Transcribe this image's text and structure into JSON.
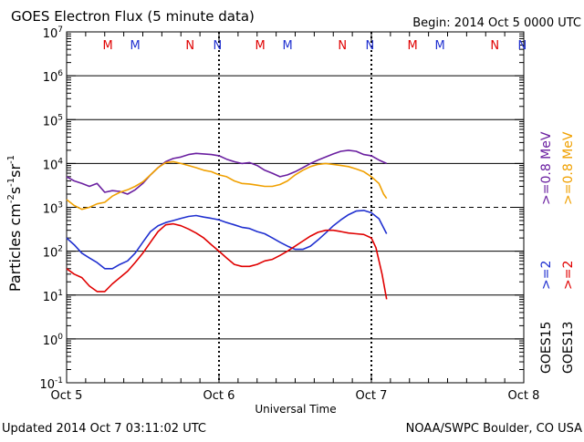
{
  "chart_data": {
    "type": "line",
    "title": "GOES Electron Flux (5 minute data)",
    "begin_label": "Begin: 2014 Oct 5 0000 UTC",
    "xlabel": "Universal Time",
    "ylabel_main": "Particles cm",
    "ylabel_sup1": "-2",
    "ylabel_mid1": "s",
    "ylabel_sup2": "-1",
    "ylabel_mid2": "sr",
    "ylabel_sup3": "-1",
    "footer_left": "Updated 2014 Oct  7 03:11:02 UTC",
    "footer_right": "NOAA/SWPC Boulder, CO USA",
    "x_range_days": [
      0,
      3
    ],
    "x_ticks": [
      {
        "day": 0,
        "label": "Oct 5"
      },
      {
        "day": 1,
        "label": "Oct 6"
      },
      {
        "day": 2,
        "label": "Oct 7"
      },
      {
        "day": 3,
        "label": "Oct 8"
      }
    ],
    "y_log_range": [
      -1,
      7
    ],
    "y_ticks": [
      {
        "exp": 7,
        "base": "10",
        "sup": "7"
      },
      {
        "exp": 6,
        "base": "10",
        "sup": "6"
      },
      {
        "exp": 5,
        "base": "10",
        "sup": "5"
      },
      {
        "exp": 4,
        "base": "10",
        "sup": "4"
      },
      {
        "exp": 3,
        "base": "10",
        "sup": "3"
      },
      {
        "exp": 2,
        "base": "10",
        "sup": "2"
      },
      {
        "exp": 1,
        "base": "10",
        "sup": "1"
      },
      {
        "exp": 0,
        "base": "10",
        "sup": "0"
      },
      {
        "exp": -1,
        "base": "10",
        "sup": "-1"
      }
    ],
    "threshold_lines": [
      {
        "exp": 3,
        "style": "dashed"
      }
    ],
    "markers": [
      {
        "day": 0.27,
        "letter": "M",
        "color": "#e00000"
      },
      {
        "day": 0.45,
        "letter": "M",
        "color": "#2030d0"
      },
      {
        "day": 0.81,
        "letter": "N",
        "color": "#e00000"
      },
      {
        "day": 0.99,
        "letter": "N",
        "color": "#2030d0"
      },
      {
        "day": 1.27,
        "letter": "M",
        "color": "#e00000"
      },
      {
        "day": 1.45,
        "letter": "M",
        "color": "#2030d0"
      },
      {
        "day": 1.81,
        "letter": "N",
        "color": "#e00000"
      },
      {
        "day": 1.99,
        "letter": "N",
        "color": "#2030d0"
      },
      {
        "day": 2.27,
        "letter": "M",
        "color": "#e00000"
      },
      {
        "day": 2.45,
        "letter": "M",
        "color": "#2030d0"
      },
      {
        "day": 2.81,
        "letter": "N",
        "color": "#e00000"
      },
      {
        "day": 2.99,
        "letter": "N",
        "color": "#2030d0"
      }
    ],
    "right_legend": [
      {
        "text": ">=0.8  MeV",
        "color": "#6a1fa0"
      },
      {
        "text": ">=0.8  MeV",
        "color": "#f0a000"
      },
      {
        "text": ">=2",
        "color": "#2030d0"
      },
      {
        "text": ">=2",
        "color": "#e00000"
      },
      {
        "text": "GOES15",
        "color": "#000000"
      },
      {
        "text": "GOES13",
        "color": "#000000"
      }
    ],
    "series": [
      {
        "name": "GOES15 >=0.8 MeV",
        "color": "#6a1fa0",
        "x": [
          0.0,
          0.05,
          0.1,
          0.15,
          0.2,
          0.25,
          0.3,
          0.35,
          0.4,
          0.45,
          0.5,
          0.55,
          0.6,
          0.65,
          0.7,
          0.75,
          0.8,
          0.85,
          0.9,
          0.95,
          1.0,
          1.05,
          1.1,
          1.15,
          1.2,
          1.25,
          1.3,
          1.35,
          1.4,
          1.45,
          1.5,
          1.55,
          1.6,
          1.65,
          1.7,
          1.75,
          1.8,
          1.85,
          1.9,
          1.95,
          2.0,
          2.05,
          2.1
        ],
        "y": [
          5000,
          4000,
          3500,
          3000,
          3500,
          2200,
          2400,
          2300,
          2000,
          2500,
          3500,
          5500,
          8000,
          11000,
          13000,
          14000,
          16000,
          17000,
          16500,
          16000,
          15000,
          12500,
          11000,
          10000,
          10500,
          9000,
          7000,
          6000,
          5000,
          5500,
          6500,
          8000,
          10000,
          12000,
          14000,
          16500,
          19000,
          20000,
          19000,
          16000,
          15000,
          12000,
          10000
        ]
      },
      {
        "name": "GOES13 >=0.8 MeV",
        "color": "#f0a000",
        "x": [
          0.0,
          0.05,
          0.1,
          0.15,
          0.2,
          0.25,
          0.3,
          0.35,
          0.4,
          0.45,
          0.5,
          0.55,
          0.6,
          0.65,
          0.7,
          0.75,
          0.8,
          0.85,
          0.9,
          0.95,
          1.0,
          1.05,
          1.1,
          1.15,
          1.2,
          1.25,
          1.3,
          1.35,
          1.4,
          1.45,
          1.5,
          1.55,
          1.6,
          1.65,
          1.7,
          1.75,
          1.8,
          1.85,
          1.9,
          1.95,
          2.0,
          2.05,
          2.08,
          2.1
        ],
        "y": [
          1500,
          1100,
          900,
          1000,
          1200,
          1300,
          1800,
          2200,
          2500,
          3000,
          3800,
          5500,
          8000,
          10500,
          11000,
          10000,
          9000,
          8000,
          7000,
          6500,
          5500,
          5000,
          4000,
          3500,
          3400,
          3200,
          3000,
          3000,
          3300,
          4000,
          5500,
          7000,
          8500,
          9500,
          10000,
          9500,
          9000,
          8500,
          7500,
          6500,
          5000,
          3500,
          2000,
          1600
        ]
      },
      {
        "name": "GOES15 >=2 MeV",
        "color": "#2030d0",
        "x": [
          0.0,
          0.05,
          0.1,
          0.15,
          0.2,
          0.25,
          0.3,
          0.35,
          0.4,
          0.45,
          0.5,
          0.55,
          0.6,
          0.65,
          0.7,
          0.75,
          0.8,
          0.85,
          0.9,
          0.95,
          1.0,
          1.05,
          1.1,
          1.15,
          1.2,
          1.25,
          1.3,
          1.35,
          1.4,
          1.45,
          1.5,
          1.55,
          1.6,
          1.65,
          1.7,
          1.75,
          1.8,
          1.85,
          1.9,
          1.95,
          2.0,
          2.05,
          2.1
        ],
        "y": [
          200,
          140,
          90,
          70,
          55,
          40,
          40,
          50,
          60,
          90,
          160,
          280,
          380,
          450,
          500,
          560,
          620,
          650,
          600,
          560,
          520,
          450,
          400,
          350,
          330,
          280,
          250,
          200,
          160,
          130,
          110,
          110,
          130,
          180,
          260,
          380,
          520,
          680,
          820,
          850,
          750,
          550,
          250
        ]
      },
      {
        "name": "GOES13 >=2 MeV",
        "color": "#e00000",
        "x": [
          0.0,
          0.05,
          0.1,
          0.15,
          0.2,
          0.25,
          0.3,
          0.35,
          0.4,
          0.45,
          0.5,
          0.55,
          0.6,
          0.65,
          0.7,
          0.75,
          0.8,
          0.85,
          0.9,
          0.95,
          1.0,
          1.05,
          1.1,
          1.15,
          1.2,
          1.25,
          1.3,
          1.35,
          1.4,
          1.45,
          1.5,
          1.55,
          1.6,
          1.65,
          1.7,
          1.75,
          1.8,
          1.85,
          1.9,
          1.95,
          2.0,
          2.03,
          2.07,
          2.1
        ],
        "y": [
          40,
          30,
          25,
          16,
          12,
          12,
          18,
          25,
          35,
          55,
          90,
          160,
          280,
          400,
          420,
          380,
          320,
          260,
          200,
          140,
          100,
          70,
          50,
          45,
          45,
          50,
          60,
          65,
          80,
          100,
          130,
          170,
          220,
          270,
          300,
          300,
          280,
          260,
          250,
          240,
          200,
          120,
          30,
          8
        ]
      }
    ]
  }
}
